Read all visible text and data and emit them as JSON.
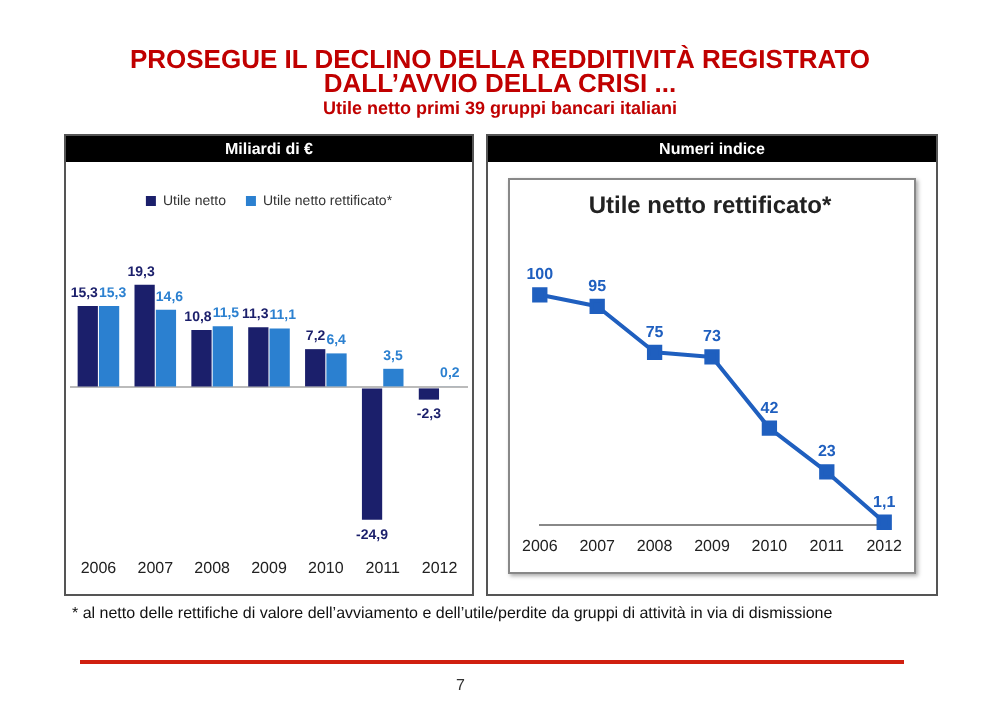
{
  "chart_data": [
    {
      "type": "bar",
      "title": "PROSEGUE IL DECLINO DELLA REDDITIVITÀ REGISTRATO DALL’AVVIO DELLA CRISI ...",
      "subtitle": "Utile netto primi 39 gruppi bancari italiani",
      "annotations": [
        "Miliardi di €",
        "* al netto delle rettifiche di valore dell’avviamento e dell’utile/perdite da gruppi di attività in via di dismissione",
        "7"
      ],
      "categories": [
        "2006",
        "2007",
        "2008",
        "2009",
        "2010",
        "2011",
        "2012"
      ],
      "series": [
        {
          "name": "Utile netto",
          "color": "#1b1f6b",
          "values": [
            15.3,
            19.3,
            10.8,
            11.3,
            7.2,
            -24.9,
            -2.3
          ],
          "value_labels": [
            "15,3",
            "19,3",
            "10,8",
            "11,3",
            "7,2",
            "-24,9",
            "-2,3"
          ]
        },
        {
          "name": "Utile netto rettificato*",
          "color": "#2b80d0",
          "values": [
            15.3,
            14.6,
            11.5,
            11.1,
            6.4,
            3.5,
            0.2
          ],
          "value_labels": [
            "15,3",
            "14,6",
            "11,5",
            "11,1",
            "6,4",
            "3,5",
            "0,2"
          ]
        }
      ],
      "legend": "top",
      "grid": false
    },
    {
      "type": "line",
      "title": "Utile netto rettificato*",
      "annotations": [
        "Numeri indice"
      ],
      "categories": [
        "2006",
        "2007",
        "2008",
        "2009",
        "2010",
        "2011",
        "2012"
      ],
      "series": [
        {
          "color": "#1f5fbf",
          "values": [
            100,
            95,
            75,
            73,
            42,
            23,
            1.1
          ],
          "value_labels": [
            "100",
            "95",
            "75",
            "73",
            "42",
            "23",
            "1,1"
          ]
        }
      ],
      "marker": "square",
      "line_style": "solid",
      "legend": false,
      "grid": false
    }
  ]
}
